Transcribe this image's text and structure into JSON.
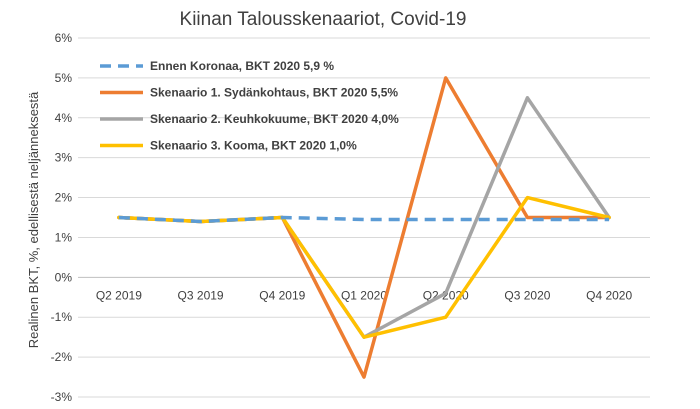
{
  "chart_data": {
    "type": "line",
    "title": "Kiinan Talousskenaariot, Covid-19",
    "xlabel": "",
    "ylabel": "Realinen BKT, %, edellisestä neljänneksestä",
    "categories": [
      "Q2 2019",
      "Q3 2019",
      "Q4 2019",
      "Q1 2020",
      "Q2 2020",
      "Q3 2020",
      "Q4 2020"
    ],
    "ylim": [
      -3,
      6
    ],
    "yticks": [
      -3,
      -2,
      -1,
      0,
      1,
      2,
      3,
      4,
      5,
      6
    ],
    "ytick_labels": [
      "-3%",
      "-2%",
      "-1%",
      "0%",
      "1%",
      "2%",
      "3%",
      "4%",
      "5%",
      "6%"
    ],
    "grid": true,
    "legend_position": "top-left",
    "series": [
      {
        "name": "Ennen Koronaa, BKT 2020 5,9 %",
        "color": "#5B9BD5",
        "dashed": true,
        "values": [
          1.5,
          1.4,
          1.5,
          1.45,
          1.45,
          1.45,
          1.45
        ]
      },
      {
        "name": "Skenaario 1. Sydänkohtaus, BKT 2020 5,5%",
        "color": "#ED7D31",
        "dashed": false,
        "values": [
          1.5,
          1.4,
          1.5,
          -2.5,
          5.0,
          1.5,
          1.5
        ]
      },
      {
        "name": "Skenaario 2. Keuhkokuume, BKT 2020 4,0%",
        "color": "#A5A5A5",
        "dashed": false,
        "values": [
          1.5,
          1.4,
          1.5,
          -1.5,
          -0.4,
          4.5,
          1.5
        ]
      },
      {
        "name": "Skenaario 3. Kooma, BKT 2020 1,0%",
        "color": "#FFC000",
        "dashed": false,
        "values": [
          1.5,
          1.4,
          1.5,
          -1.5,
          -1.0,
          2.0,
          1.5
        ]
      }
    ]
  }
}
